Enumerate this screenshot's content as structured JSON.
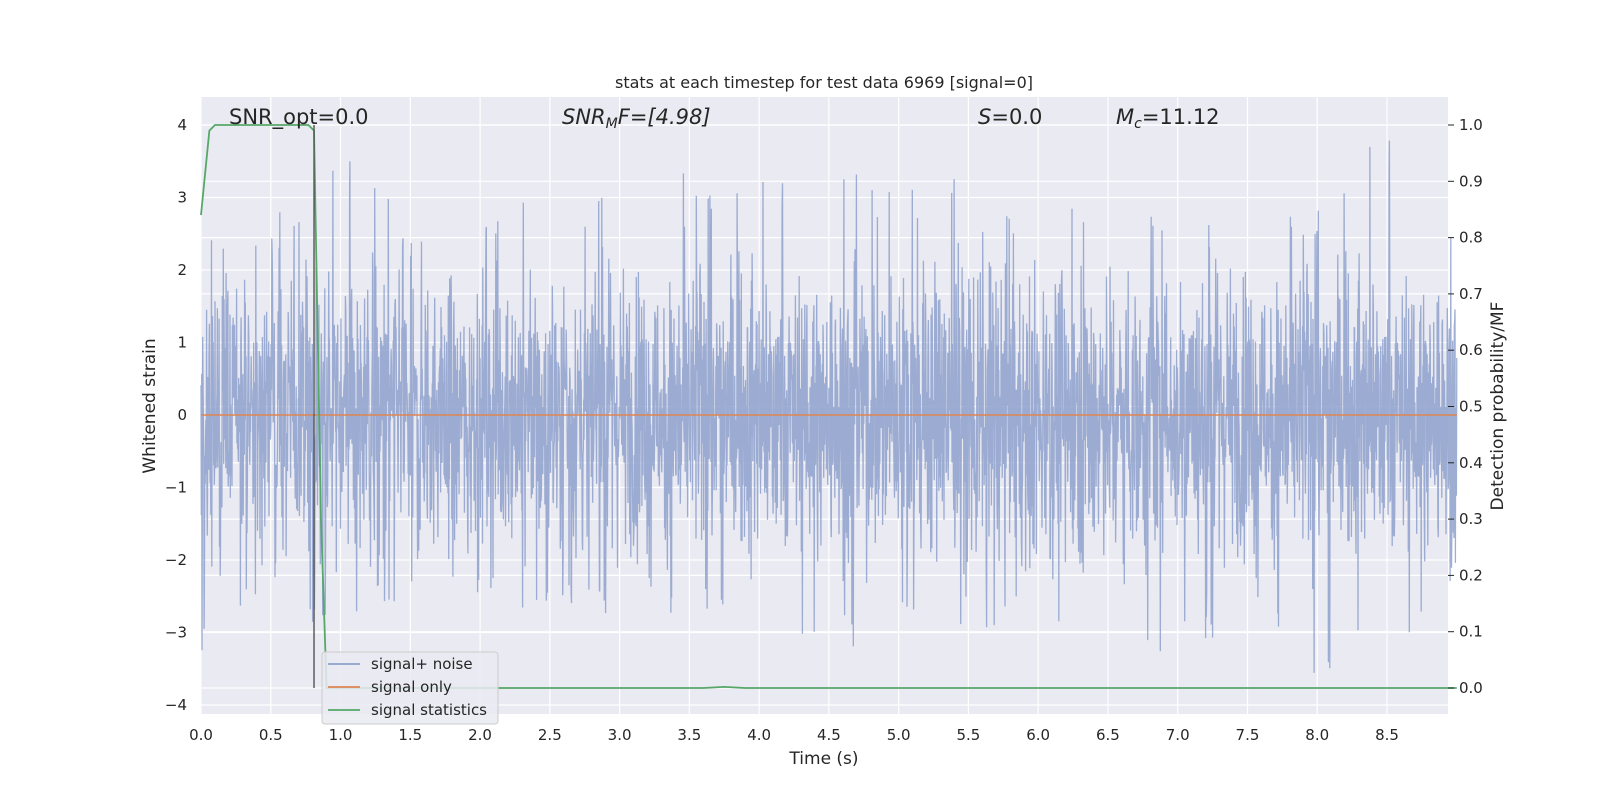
{
  "chart_data": {
    "type": "line",
    "title": "stats at each timestep for test data 6969 [signal=0]",
    "xlabel": "Time (s)",
    "ylabel": "Whitened strain",
    "y2label": "Detection probability/MF",
    "xlim": [
      0,
      9.0
    ],
    "ylim": [
      -4.2,
      4.4
    ],
    "y2lim": [
      -0.046,
      1.036
    ],
    "grid": true,
    "legend_position": "lower-left",
    "x_ticks": [
      "0.0",
      "0.5",
      "1.0",
      "1.5",
      "2.0",
      "2.5",
      "3.0",
      "3.5",
      "4.0",
      "4.5",
      "5.0",
      "5.5",
      "6.0",
      "6.5",
      "7.0",
      "7.5",
      "8.0",
      "8.5"
    ],
    "x_tick_values": [
      0,
      0.5,
      1.0,
      1.5,
      2.0,
      2.5,
      3.0,
      3.5,
      4.0,
      4.5,
      5.0,
      5.5,
      6.0,
      6.5,
      7.0,
      7.5,
      8.0,
      8.5
    ],
    "y_ticks": [
      "4",
      "3",
      "2",
      "1",
      "0",
      "−1",
      "−2",
      "−3",
      "−4"
    ],
    "y_tick_values": [
      4,
      3,
      2,
      1,
      0,
      -1,
      -2,
      -3,
      -4
    ],
    "y2_ticks": [
      "1.0",
      "0.9",
      "0.8",
      "0.7",
      "0.6",
      "0.5",
      "0.4",
      "0.3",
      "0.2",
      "0.1",
      "0.0"
    ],
    "y2_tick_values": [
      1.0,
      0.9,
      0.8,
      0.7,
      0.6,
      0.5,
      0.4,
      0.3,
      0.2,
      0.1,
      0.0
    ],
    "annotations": {
      "snr_opt": "SNR_opt=0.0",
      "snr_mf_base": "SNR",
      "snr_mf_sub": "M",
      "snr_mf_rest": "F=[4.98]",
      "s_var": "S",
      "s_rest": "=0.0",
      "mc_var": "M",
      "mc_sub": "c",
      "mc_rest": "=11.12"
    },
    "marker_line_x": 0.81,
    "series": [
      {
        "name": "signal+ noise",
        "color": "#8da0cb",
        "axis": "left",
        "description": "dense noise trace sampled across 0–9 s",
        "envelope": {
          "t": [
            0,
            0.5,
            1.0,
            1.5,
            2.0,
            2.5,
            3.0,
            3.5,
            4.0,
            4.5,
            5.0,
            5.5,
            6.0,
            6.5,
            7.0,
            7.5,
            8.0,
            8.5,
            9.0
          ],
          "max": [
            2.4,
            2.8,
            3.6,
            3.2,
            2.7,
            3.1,
            3.0,
            3.4,
            3.2,
            3.6,
            3.1,
            3.3,
            2.6,
            3.3,
            2.6,
            2.7,
            2.8,
            4.0,
            2.5
          ],
          "min": [
            -3.3,
            -2.7,
            -3.0,
            -2.5,
            -2.9,
            -2.6,
            -2.8,
            -2.7,
            -2.6,
            -3.3,
            -3.0,
            -3.0,
            -2.9,
            -3.1,
            -3.4,
            -2.8,
            -3.6,
            -3.3,
            -2.4
          ]
        }
      },
      {
        "name": "signal only",
        "color": "#dd8452",
        "axis": "left",
        "x": [
          0,
          9.0
        ],
        "y": [
          0,
          0
        ]
      },
      {
        "name": "signal statistics",
        "color": "#55a868",
        "axis": "right",
        "x": [
          0,
          0.06,
          0.1,
          0.2,
          0.4,
          0.6,
          0.77,
          0.81,
          0.86,
          0.9,
          1.0,
          2.0,
          3.0,
          3.6,
          3.75,
          3.9,
          4.0,
          5.0,
          6.0,
          7.0,
          8.0,
          9.0
        ],
        "y": [
          0.84,
          0.99,
          1.0,
          1.0,
          1.0,
          1.0,
          1.0,
          0.99,
          0.3,
          0.0,
          0.0,
          0.0,
          0.0,
          0.0,
          0.002,
          0.0,
          0.0,
          0.0,
          0.0,
          0.0,
          0.0,
          0.0
        ]
      }
    ]
  }
}
